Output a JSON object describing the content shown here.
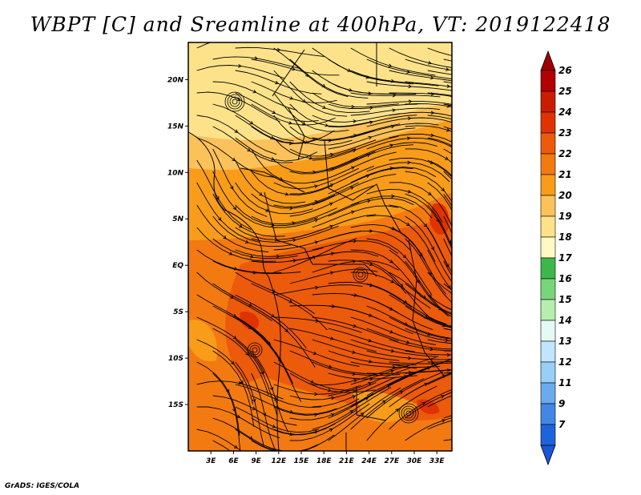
{
  "title": "WBPT [C] and Sreamline at 400hPa, VT: 2019122418",
  "credit": "GrADS: IGES/COLA",
  "map": {
    "lon_range": [
      0,
      35
    ],
    "lat_range": [
      -20,
      24
    ],
    "lat_ticks": [
      {
        "value": 20,
        "label": "20N"
      },
      {
        "value": 15,
        "label": "15N"
      },
      {
        "value": 10,
        "label": "10N"
      },
      {
        "value": 5,
        "label": "5N"
      },
      {
        "value": 0,
        "label": "EQ"
      },
      {
        "value": -5,
        "label": "5S"
      },
      {
        "value": -10,
        "label": "10S"
      },
      {
        "value": -15,
        "label": "15S"
      }
    ],
    "lon_ticks": [
      {
        "value": 3,
        "label": "3E"
      },
      {
        "value": 6,
        "label": "6E"
      },
      {
        "value": 9,
        "label": "9E"
      },
      {
        "value": 12,
        "label": "12E"
      },
      {
        "value": 15,
        "label": "15E"
      },
      {
        "value": 18,
        "label": "18E"
      },
      {
        "value": 21,
        "label": "21E"
      },
      {
        "value": 24,
        "label": "24E"
      },
      {
        "value": 27,
        "label": "27E"
      },
      {
        "value": 30,
        "label": "30E"
      },
      {
        "value": 33,
        "label": "33E"
      }
    ]
  },
  "colorbar": {
    "labels": [
      "26",
      "25",
      "24",
      "23",
      "22",
      "21",
      "20",
      "19",
      "18",
      "17",
      "16",
      "15",
      "14",
      "13",
      "12",
      "11",
      "9",
      "7"
    ],
    "colors": [
      "#b30000",
      "#cc1c00",
      "#e03300",
      "#ec5a0c",
      "#f37a10",
      "#f89c1a",
      "#fbc15a",
      "#fde28a",
      "#fffac4",
      "#3cb84a",
      "#78d67a",
      "#b6eeae",
      "#e6faf5",
      "#bfe6fb",
      "#96d0f7",
      "#6aaaef",
      "#4287e6",
      "#1e63dc"
    ],
    "top_arrow_color": "#a00000",
    "bottom_arrow_color": "#1a56d6"
  }
}
